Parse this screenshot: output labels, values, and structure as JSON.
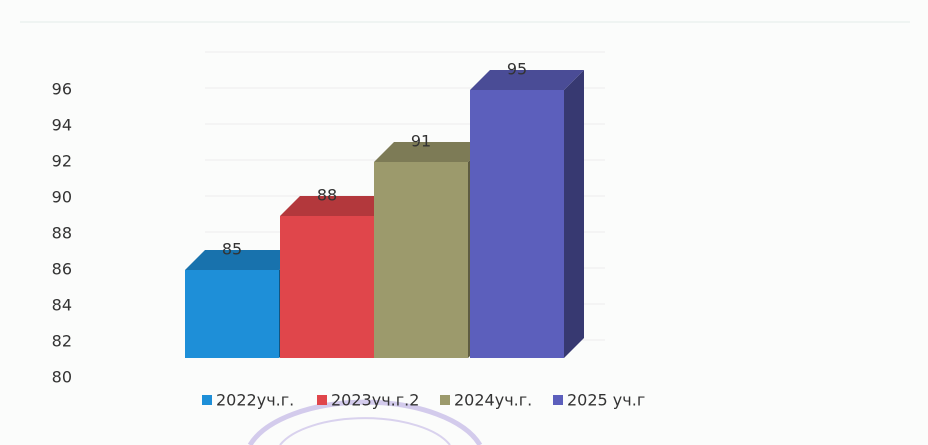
{
  "chart_data": {
    "type": "bar3d",
    "series": [
      {
        "name": "2022уч.г.",
        "color": "#1e8fd8",
        "values": [
          85
        ]
      },
      {
        "name": "2023уч.г.2",
        "color": "#e0464b",
        "values": [
          88
        ]
      },
      {
        "name": "2024уч.г.",
        "color": "#9c9a6c",
        "values": [
          91
        ]
      },
      {
        "name": "2025 уч.г",
        "color": "#5c5fbc",
        "values": [
          95
        ]
      }
    ],
    "ylim": [
      80,
      96
    ],
    "yticks": [
      80,
      82,
      84,
      86,
      88,
      90,
      92,
      94,
      96
    ],
    "grid": true,
    "legend": "bottom"
  }
}
